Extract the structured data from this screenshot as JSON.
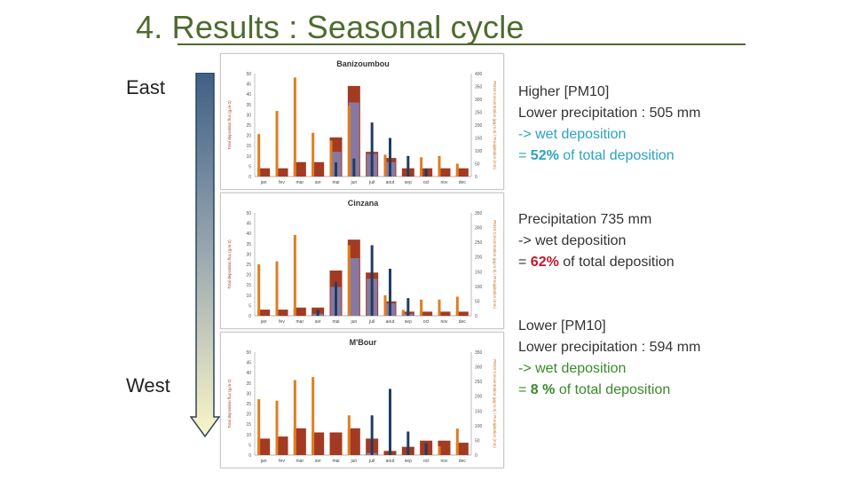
{
  "title": "4. Results : Seasonal cycle",
  "direction": {
    "top_label": "East",
    "bottom_label": "West"
  },
  "colors": {
    "title": "#4d6b2e",
    "total_bar": "#a33a22",
    "wet_fill": "#7d8fcc",
    "concentration_bar": "#1f3d63",
    "precip_bar": "#e07d1f",
    "wet_text": "#2aa3c0",
    "dry_text": "#3a8a2a",
    "highlight_red": "#c0182b"
  },
  "annotations": [
    {
      "lines": [
        {
          "text": "Higher [PM10]",
          "class": ""
        },
        {
          "text": "Lower precipitation : 505 mm",
          "class": ""
        },
        {
          "text": "-> wet deposition",
          "class": "teal"
        }
      ],
      "pct_prefix": "= ",
      "pct": "52%",
      "pct_suffix": " of total deposition",
      "text_class": "teal",
      "pct_color": "#2aa3c0"
    },
    {
      "lines": [
        {
          "text": "Precipitation 735 mm",
          "class": ""
        },
        {
          "text": "-> wet deposition",
          "class": ""
        }
      ],
      "pct_prefix": "= ",
      "pct": "62%",
      "pct_suffix": " of total deposition",
      "text_class": "",
      "pct_color": "#c0182b"
    },
    {
      "lines": [
        {
          "text": "Lower [PM10]",
          "class": ""
        },
        {
          "text": "Lower precipitation : 594 mm",
          "class": ""
        },
        {
          "text": "-> wet deposition",
          "class": "green"
        }
      ],
      "pct_prefix": "= ",
      "pct": "8 %",
      "pct_suffix": " of total deposition",
      "text_class": "green",
      "pct_color": "#3a8a2a"
    }
  ],
  "chart_data": [
    {
      "type": "bar",
      "title": "Banizoumbou",
      "categories": [
        "jan",
        "fev",
        "mar",
        "avr",
        "mai",
        "jun",
        "juil",
        "aout",
        "sep",
        "oct",
        "nov",
        "dec"
      ],
      "ylabel": "Total deposition flux (g.m-2)",
      "y2label": "PM10 Concentration (µg.m-3) / Precipitation (mm)",
      "ylim": [
        0,
        50
      ],
      "y2lim": [
        0,
        400
      ],
      "yticks": [
        0,
        5,
        10,
        15,
        20,
        25,
        30,
        35,
        40,
        45,
        50
      ],
      "y2ticks": [
        0,
        50,
        100,
        150,
        200,
        250,
        300,
        350,
        400
      ],
      "series": [
        {
          "name": "Total deposition",
          "axis": "left",
          "values": [
            4,
            4,
            7,
            7,
            19,
            44,
            12,
            9,
            4,
            4,
            4,
            4
          ]
        },
        {
          "name": "Wet deposition",
          "axis": "left",
          "values": [
            0,
            0,
            0,
            0,
            12,
            36,
            11,
            7,
            0,
            0,
            0,
            0
          ]
        },
        {
          "name": "PM10 concentration",
          "axis": "right",
          "values": [
            0,
            0,
            0,
            0,
            55,
            70,
            210,
            150,
            80,
            30,
            0,
            0
          ]
        },
        {
          "name": "Precipitation",
          "axis": "right",
          "values": [
            165,
            255,
            385,
            170,
            140,
            275,
            0,
            85,
            0,
            75,
            80,
            50
          ]
        }
      ]
    },
    {
      "type": "bar",
      "title": "Cinzana",
      "categories": [
        "jan",
        "fev",
        "mar",
        "avr",
        "mai",
        "jun",
        "juil",
        "aout",
        "sep",
        "oct",
        "nov",
        "dec"
      ],
      "ylabel": "Total deposition flux (g.m-2)",
      "y2label": "PM10 Concentration (µg.m-3) / Precipitation (mm)",
      "ylim": [
        0,
        50
      ],
      "y2lim": [
        0,
        350
      ],
      "yticks": [
        0,
        5,
        10,
        15,
        20,
        25,
        30,
        35,
        40,
        45,
        50
      ],
      "y2ticks": [
        0,
        50,
        100,
        150,
        200,
        250,
        300,
        350
      ],
      "series": [
        {
          "name": "Total deposition",
          "axis": "left",
          "values": [
            3,
            3,
            4,
            4,
            22,
            37,
            21,
            7,
            2,
            2,
            2,
            2
          ]
        },
        {
          "name": "Wet deposition",
          "axis": "left",
          "values": [
            0,
            0,
            0,
            1,
            14,
            28,
            18,
            6,
            1,
            0,
            0,
            0
          ]
        },
        {
          "name": "PM10 concentration",
          "axis": "right",
          "values": [
            0,
            0,
            0,
            20,
            115,
            0,
            240,
            160,
            60,
            0,
            0,
            0
          ]
        },
        {
          "name": "Precipitation",
          "axis": "right",
          "values": [
            175,
            185,
            275,
            0,
            0,
            240,
            0,
            70,
            20,
            55,
            55,
            65
          ]
        }
      ]
    },
    {
      "type": "bar",
      "title": "M'Bour",
      "categories": [
        "jan",
        "fev",
        "mar",
        "avr",
        "mai",
        "jun",
        "juil",
        "aout",
        "sep",
        "oct",
        "nov",
        "dec"
      ],
      "ylabel": "Total deposition flux (g.m-2)",
      "y2label": "PM10 Concentration (µg.m-3) / Precipitation (mm)",
      "ylim": [
        0,
        50
      ],
      "y2lim": [
        0,
        350
      ],
      "yticks": [
        0,
        5,
        10,
        15,
        20,
        25,
        30,
        35,
        40,
        45,
        50
      ],
      "y2ticks": [
        0,
        50,
        100,
        150,
        200,
        250,
        300,
        350
      ],
      "series": [
        {
          "name": "Total deposition",
          "axis": "left",
          "values": [
            8,
            9,
            13,
            11,
            11,
            13,
            8,
            2,
            4,
            7,
            7,
            6
          ]
        },
        {
          "name": "Wet deposition",
          "axis": "left",
          "values": [
            0,
            0,
            0,
            0,
            0,
            0,
            1,
            0,
            0,
            0,
            0,
            0
          ]
        },
        {
          "name": "PM10 concentration",
          "axis": "right",
          "values": [
            0,
            0,
            0,
            0,
            0,
            0,
            135,
            225,
            80,
            40,
            0,
            0
          ]
        },
        {
          "name": "Precipitation",
          "axis": "right",
          "values": [
            190,
            185,
            255,
            265,
            0,
            135,
            0,
            0,
            0,
            0,
            30,
            90
          ]
        }
      ]
    }
  ]
}
